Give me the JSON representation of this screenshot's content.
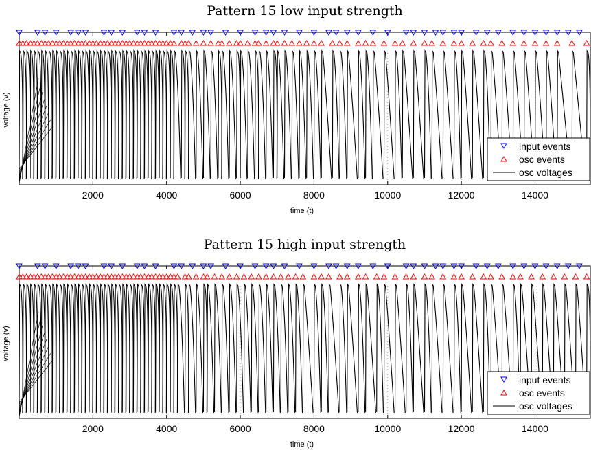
{
  "chart_data": [
    {
      "type": "line",
      "title": "Pattern 15 low input strength",
      "xlabel": "time (t)",
      "ylabel": "voltage (v)",
      "xlim": [
        0,
        15500
      ],
      "xticks": [
        2000,
        4000,
        6000,
        8000,
        10000,
        12000,
        14000
      ],
      "grid": "x-dotted",
      "legend": {
        "placement": "bottom-right",
        "entries": [
          {
            "label": "input events",
            "marker": "triangle-down",
            "color": "#0000ff"
          },
          {
            "label": "osc events",
            "marker": "triangle-up",
            "color": "#ff0000"
          },
          {
            "label": "osc voltages",
            "marker": "line",
            "color": "#000000"
          }
        ]
      },
      "series": [
        {
          "name": "input events",
          "times": [
            0,
            500,
            700,
            1000,
            1400,
            1600,
            1800,
            2300,
            2500,
            2800,
            3200,
            3400,
            3700,
            4200,
            4400,
            4700,
            5000,
            5200,
            5600,
            6000,
            6400,
            6700,
            6900,
            7200,
            7600,
            8000,
            8400,
            8600,
            8900,
            9200,
            9600,
            10000,
            10500,
            10700,
            11000,
            11300,
            11500,
            11800,
            12000,
            12400,
            12700,
            13000,
            13400,
            13700,
            14000,
            14300,
            14600,
            14900,
            15200
          ]
        },
        {
          "name": "osc events",
          "times": [
            0,
            100,
            200,
            300,
            400,
            500,
            600,
            700,
            800,
            900,
            1000,
            1100,
            1200,
            1300,
            1400,
            1500,
            1600,
            1700,
            1800,
            1900,
            2000,
            2100,
            2200,
            2300,
            2400,
            2500,
            2600,
            2700,
            2800,
            2900,
            3000,
            3100,
            3200,
            3300,
            3400,
            3500,
            3600,
            3700,
            3800,
            3900,
            4000,
            4100,
            4200,
            4400,
            4500,
            4600,
            4800,
            5000,
            5200,
            5400,
            5500,
            5700,
            5900,
            6000,
            6200,
            6400,
            6500,
            6700,
            6900,
            7000,
            7200,
            7400,
            7600,
            7800,
            8000,
            8200,
            8500,
            8700,
            8900,
            9200,
            9400,
            9600,
            9900,
            10200,
            10400,
            10700,
            11000,
            11200,
            11500,
            11800,
            12000,
            12300,
            12600,
            12800,
            13100,
            13400,
            13700,
            14000,
            14300,
            14600,
            15000,
            15400
          ]
        },
        {
          "name": "osc voltages",
          "spike_times": [
            0,
            100,
            200,
            300,
            400,
            500,
            600,
            700,
            800,
            900,
            1000,
            1100,
            1200,
            1300,
            1400,
            1500,
            1600,
            1700,
            1800,
            1900,
            2000,
            2100,
            2200,
            2300,
            2400,
            2500,
            2600,
            2700,
            2800,
            2900,
            3000,
            3100,
            3200,
            3300,
            3400,
            3500,
            3600,
            3700,
            3800,
            3900,
            4000,
            4100,
            4200,
            4400,
            4500,
            4600,
            4800,
            5000,
            5200,
            5400,
            5500,
            5700,
            5900,
            6000,
            6200,
            6400,
            6500,
            6700,
            6900,
            7000,
            7200,
            7400,
            7600,
            7800,
            8000,
            8200,
            8500,
            8700,
            8900,
            9200,
            9400,
            9600,
            9900,
            10200,
            10400,
            10700,
            11000,
            11200,
            11500,
            11800,
            12000,
            12300,
            12600,
            12800,
            13100,
            13400,
            13700,
            14000,
            14300,
            14600,
            15000,
            15400
          ]
        }
      ]
    },
    {
      "type": "line",
      "title": "Pattern 15 high input strength",
      "xlabel": "time (t)",
      "ylabel": "voltage (v)",
      "xlim": [
        0,
        15500
      ],
      "xticks": [
        2000,
        4000,
        6000,
        8000,
        10000,
        12000,
        14000
      ],
      "grid": "x-dotted",
      "legend": {
        "placement": "bottom-right",
        "entries": [
          {
            "label": "input events",
            "marker": "triangle-down",
            "color": "#0000ff"
          },
          {
            "label": "osc events",
            "marker": "triangle-up",
            "color": "#ff0000"
          },
          {
            "label": "osc voltages",
            "marker": "line",
            "color": "#000000"
          }
        ]
      },
      "series": [
        {
          "name": "input events",
          "times": [
            0,
            500,
            700,
            1000,
            1400,
            1600,
            1800,
            2300,
            2500,
            2800,
            3200,
            3400,
            3700,
            4200,
            4400,
            4700,
            5000,
            5200,
            5600,
            6000,
            6400,
            6700,
            6900,
            7200,
            7600,
            8000,
            8400,
            8600,
            8900,
            9200,
            9600,
            10000,
            10500,
            10700,
            11000,
            11300,
            11500,
            11800,
            12000,
            12400,
            12700,
            13000,
            13400,
            13700,
            14000,
            14300,
            14600,
            14900,
            15200
          ]
        },
        {
          "name": "osc events",
          "times": [
            0,
            100,
            200,
            300,
            400,
            500,
            600,
            700,
            800,
            900,
            1000,
            1100,
            1200,
            1300,
            1400,
            1500,
            1600,
            1700,
            1800,
            1900,
            2000,
            2100,
            2200,
            2300,
            2400,
            2500,
            2600,
            2700,
            2800,
            2900,
            3000,
            3100,
            3200,
            3300,
            3400,
            3500,
            3600,
            3700,
            3800,
            3900,
            4000,
            4100,
            4200,
            4300,
            4500,
            4600,
            4800,
            5000,
            5100,
            5300,
            5500,
            5700,
            5900,
            6100,
            6300,
            6500,
            6700,
            6900,
            7100,
            7300,
            7500,
            7700,
            8000,
            8200,
            8400,
            8700,
            8900,
            9200,
            9400,
            9700,
            9900,
            10200,
            10500,
            10700,
            11000,
            11200,
            11500,
            11800,
            12000,
            12300,
            12600,
            12800,
            13100,
            13400,
            13600,
            13900,
            14200,
            14500,
            14800,
            15100,
            15400
          ]
        },
        {
          "name": "osc voltages",
          "spike_times": [
            0,
            100,
            200,
            300,
            400,
            500,
            600,
            700,
            800,
            900,
            1000,
            1100,
            1200,
            1300,
            1400,
            1500,
            1600,
            1700,
            1800,
            1900,
            2000,
            2100,
            2200,
            2300,
            2400,
            2500,
            2600,
            2700,
            2800,
            2900,
            3000,
            3100,
            3200,
            3300,
            3400,
            3500,
            3600,
            3700,
            3800,
            3900,
            4000,
            4100,
            4200,
            4300,
            4500,
            4600,
            4800,
            5000,
            5100,
            5300,
            5500,
            5700,
            5900,
            6100,
            6300,
            6500,
            6700,
            6900,
            7100,
            7300,
            7500,
            7700,
            8000,
            8200,
            8400,
            8700,
            8900,
            9200,
            9400,
            9700,
            9900,
            10200,
            10500,
            10700,
            11000,
            11200,
            11500,
            11800,
            12000,
            12300,
            12600,
            12800,
            13100,
            13400,
            13600,
            13900,
            14200,
            14500,
            14800,
            15100,
            15400
          ]
        }
      ]
    }
  ]
}
